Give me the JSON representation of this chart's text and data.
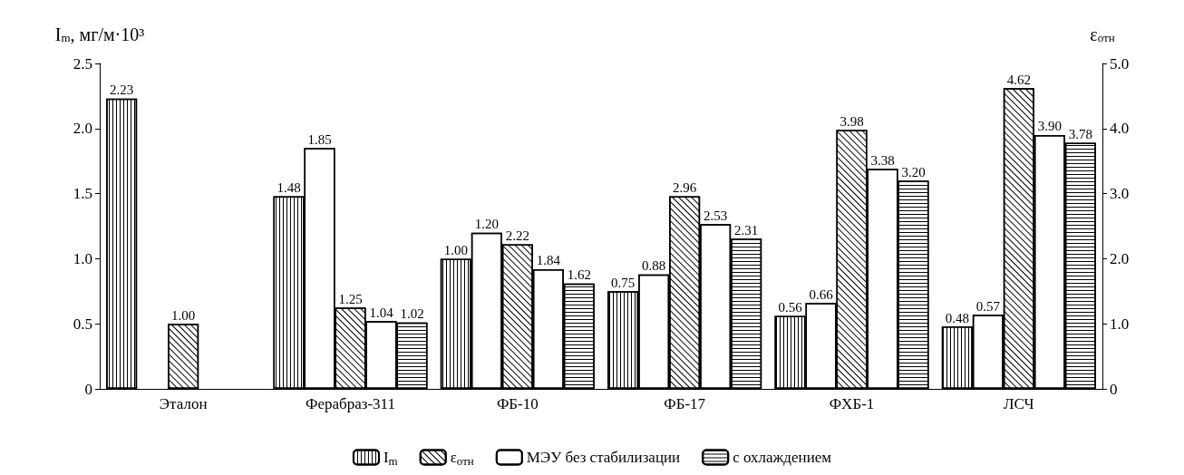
{
  "chart_data": {
    "type": "bar",
    "ylabel": "I$_{m}$, мг/м·10³",
    "y2label": "ε$_{отн}$",
    "categories": [
      "Эталон",
      "Ферабраз-311",
      "ФБ-10",
      "ФБ-17",
      "ФХБ-1",
      "ЛСЧ"
    ],
    "series": [
      {
        "name": "I$_{m}$",
        "color": "#000000",
        "values": [
          2.23,
          1.48,
          1.0,
          0.75,
          0.56,
          0.48
        ],
        "value_labels": [
          "2.23",
          "1.48",
          "1.00",
          "0.75",
          "0.56",
          "0.48"
        ]
      },
      {
        "name": "МЭУ без стабилизации",
        "color": "#ffffff",
        "values": [
          null,
          1.85,
          1.2,
          0.88,
          0.66,
          0.57
        ],
        "value_labels": [
          null,
          "1.85",
          "1.20",
          "0.88",
          "0.66",
          "0.57"
        ]
      },
      {
        "name": "ε$_{отн}$",
        "color": "#000000",
        "axis": "y2",
        "values": [
          1.0,
          1.25,
          2.22,
          2.96,
          3.98,
          4.62
        ],
        "value_labels": [
          "1.00",
          "1.25",
          "2.22",
          "2.96",
          "3.98",
          "4.62"
        ]
      },
      {
        "color": "#ffffff",
        "axis": "y2",
        "values": [
          null,
          1.04,
          1.84,
          2.53,
          3.38,
          3.9
        ],
        "value_labels": [
          null,
          "1.04",
          "1.84",
          "2.53",
          "3.38",
          "3.90"
        ]
      },
      {
        "name": "с охлаждением",
        "color": "#000000",
        "axis": "y2",
        "values": [
          null,
          1.02,
          1.62,
          2.31,
          3.2,
          3.78
        ],
        "value_labels": [
          null,
          "1.02",
          "1.62",
          "2.31",
          "3.20",
          "3.78"
        ]
      }
    ],
    "ylim": [
      0,
      2.5
    ],
    "yticks": [
      0,
      {
        "value": 0.5,
        "label": "0.5"
      },
      {
        "value": 1,
        "label": "1.0"
      },
      {
        "value": 1.5,
        "label": "1.5"
      },
      {
        "value": 2,
        "label": "2.0"
      },
      {
        "value": 2.5,
        "label": "2.5"
      }
    ],
    "y2lim": [
      0,
      5
    ],
    "y2ticks": [
      0,
      {
        "value": 1,
        "label": "1.0"
      },
      {
        "value": 2,
        "label": "2.0"
      },
      {
        "value": 3,
        "label": "3.0"
      },
      {
        "value": 4,
        "label": "4.0"
      },
      {
        "value": 5,
        "label": "5.0"
      }
    ],
    "grid": false,
    "legend": "bottom"
  }
}
